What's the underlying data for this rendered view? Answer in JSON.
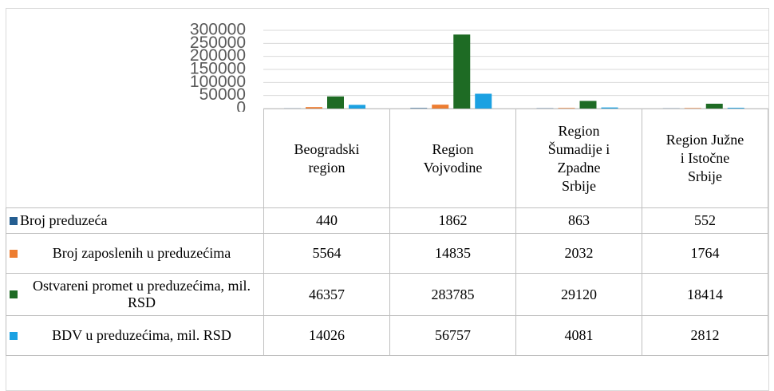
{
  "chart_data": {
    "type": "bar",
    "categories": [
      "Beogradski region",
      "Region Vojvodine",
      "Region Šumadije i Zpadne Srbije",
      "Region Južne i Istočne Srbije"
    ],
    "series": [
      {
        "name": "Broj preduzeća",
        "color": "#255e91",
        "values": [
          440,
          1862,
          863,
          552
        ]
      },
      {
        "name": "Broj zaposlenih u preduzećima",
        "color": "#ed7d31",
        "values": [
          5564,
          14835,
          2032,
          1764
        ]
      },
      {
        "name": "Ostvareni promet u preduzećima, mil. RSD",
        "color": "#1e6b24",
        "values": [
          46357,
          283785,
          29120,
          18414
        ]
      },
      {
        "name": "BDV u preduzećima, mil. RSD",
        "color": "#1ba1e2",
        "values": [
          14026,
          56757,
          4081,
          2812
        ]
      }
    ],
    "ylim": [
      0,
      300000
    ],
    "yticks": [
      0,
      50000,
      100000,
      150000,
      200000,
      250000,
      300000
    ],
    "grid": true
  }
}
